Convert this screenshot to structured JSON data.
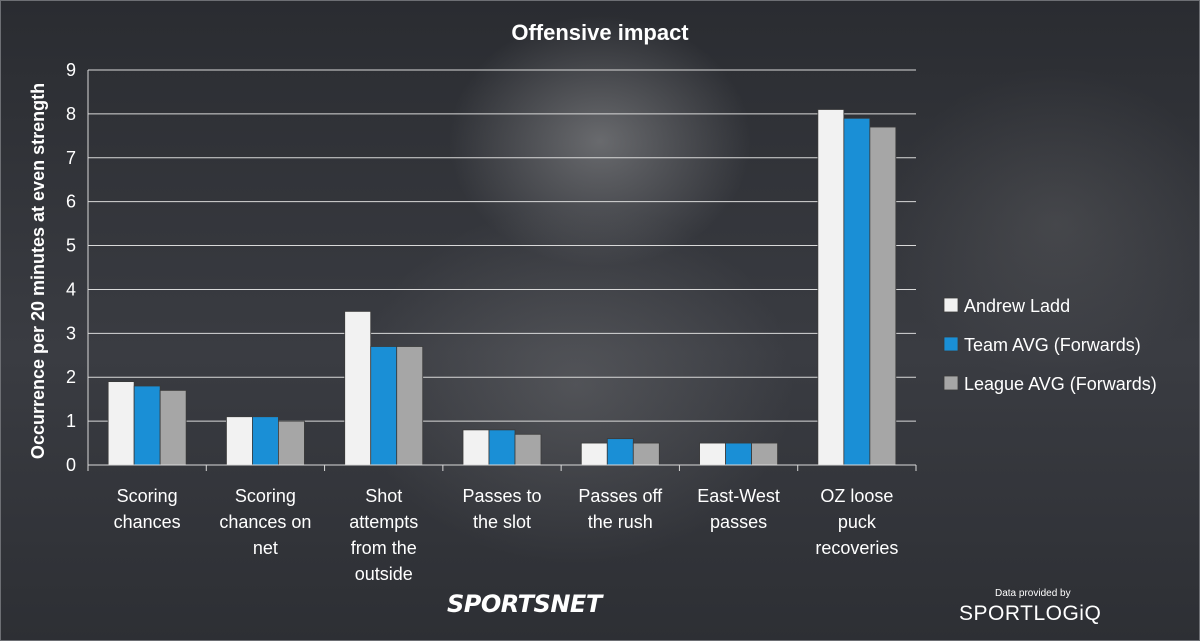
{
  "chart_data": {
    "type": "bar",
    "title": "Offensive impact",
    "ylabel": "Occurrence per 20 minutes at even strength",
    "xlabel": "",
    "ylim": [
      0,
      9
    ],
    "yticks": [
      0,
      1,
      2,
      3,
      4,
      5,
      6,
      7,
      8,
      9
    ],
    "grid": true,
    "legend_position": "right",
    "categories": [
      "Scoring chances",
      "Scoring chances on net",
      "Shot attempts from the outside",
      "Passes to the slot",
      "Passes off the rush",
      "East-West passes",
      "OZ loose puck recoveries"
    ],
    "category_lines": [
      [
        "Scoring",
        "chances"
      ],
      [
        "Scoring",
        "chances on",
        "net"
      ],
      [
        "Shot",
        "attempts",
        "from the",
        "outside"
      ],
      [
        "Passes to",
        "the slot"
      ],
      [
        "Passes off",
        "the rush"
      ],
      [
        "East-West",
        "passes"
      ],
      [
        "OZ loose",
        "puck",
        "recoveries"
      ]
    ],
    "series": [
      {
        "name": "Andrew Ladd",
        "color": "#f2f2f2",
        "values": [
          1.9,
          1.1,
          3.5,
          0.8,
          0.5,
          0.5,
          8.1
        ]
      },
      {
        "name": "Team AVG (Forwards)",
        "color": "#1a8fd6",
        "values": [
          1.8,
          1.1,
          2.7,
          0.8,
          0.6,
          0.5,
          7.9
        ]
      },
      {
        "name": "League AVG (Forwards)",
        "color": "#a6a6a6",
        "values": [
          1.7,
          1.0,
          2.7,
          0.7,
          0.5,
          0.5,
          7.7
        ]
      }
    ]
  },
  "branding": {
    "logo_text": "SPORTSNET",
    "provided_by": "Data provided by",
    "provider": "SPORTLOGiQ"
  }
}
